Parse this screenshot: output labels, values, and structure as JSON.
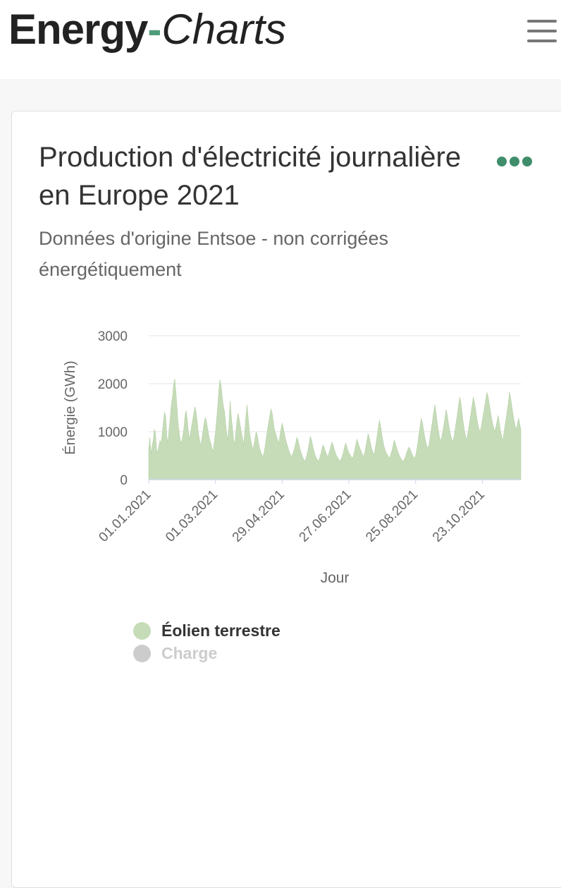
{
  "header": {
    "logo_part1": "Energy",
    "logo_part2": "-",
    "logo_part3": "Charts",
    "logo_color": "#222222",
    "logo_accent_color": "#4e9c7a",
    "menu_icon": "hamburger-menu-icon"
  },
  "card": {
    "title": "Production d'électricité journalière en Europe 2021",
    "subtitle": "Données d'origine Entsoe - non corrigées énergétiquement",
    "more_icon": "more-dots-icon",
    "more_color": "#3f8d6b"
  },
  "chart_data": {
    "type": "area",
    "title": "Production d'électricité journalière en Europe 2021",
    "xlabel": "Jour",
    "ylabel": "Énergie (GWh)",
    "ylim": [
      0,
      3000
    ],
    "y_ticks": [
      "0",
      "1000",
      "2000",
      "3000"
    ],
    "x_start": "2021-01-01",
    "x_tick_labels": [
      "01.01.2021",
      "01.03.2021",
      "29.04.2021",
      "27.06.2021",
      "25.08.2021",
      "23.10.2021"
    ],
    "x_tick_day_index": [
      0,
      59,
      118,
      177,
      236,
      295
    ],
    "grid": true,
    "legend_position": "bottom-left",
    "series": [
      {
        "name": "Éolien terrestre",
        "color": "#c6dcb9",
        "visible": true,
        "values": [
          620,
          880,
          540,
          700,
          820,
          1050,
          960,
          610,
          580,
          700,
          820,
          740,
          980,
          1200,
          1410,
          1320,
          890,
          760,
          1050,
          1280,
          1560,
          1720,
          1980,
          2100,
          1840,
          1520,
          1180,
          960,
          820,
          760,
          900,
          1050,
          1310,
          1440,
          1280,
          1020,
          840,
          980,
          1120,
          1260,
          1400,
          1520,
          1390,
          1180,
          960,
          820,
          700,
          860,
          1010,
          1180,
          1300,
          1220,
          1080,
          940,
          820,
          760,
          640,
          600,
          780,
          980,
          1240,
          1520,
          1860,
          2080,
          1960,
          1720,
          1540,
          1420,
          1180,
          960,
          820,
          1180,
          1640,
          1320,
          1080,
          840,
          720,
          980,
          1220,
          1380,
          1260,
          1120,
          980,
          860,
          720,
          1020,
          1340,
          1560,
          1280,
          1020,
          860,
          740,
          620,
          720,
          860,
          1000,
          920,
          780,
          660,
          580,
          520,
          480,
          560,
          700,
          880,
          1040,
          1180,
          1320,
          1480,
          1400,
          1240,
          1060,
          980,
          900,
          820,
          760,
          900,
          1060,
          1180,
          1080,
          960,
          840,
          760,
          680,
          600,
          540,
          480,
          520,
          580,
          660,
          760,
          880,
          820,
          720,
          620,
          540,
          480,
          420,
          380,
          440,
          520,
          640,
          780,
          900,
          820,
          700,
          600,
          520,
          460,
          420,
          380,
          440,
          520,
          620,
          720,
          680,
          600,
          540,
          480,
          520,
          600,
          700,
          780,
          720,
          640,
          560,
          500,
          460,
          420,
          380,
          420,
          480,
          560,
          660,
          760,
          700,
          620,
          560,
          520,
          480,
          440,
          500,
          600,
          720,
          840,
          780,
          700,
          640,
          580,
          520,
          480,
          560,
          680,
          820,
          960,
          880,
          760,
          660,
          580,
          520,
          600,
          760,
          920,
          1080,
          1240,
          1120,
          960,
          820,
          700,
          620,
          560,
          520,
          480,
          440,
          520,
          600,
          700,
          820,
          760,
          680,
          600,
          540,
          480,
          440,
          400,
          380,
          420,
          480,
          560,
          620,
          680,
          640,
          580,
          520,
          480,
          440,
          500,
          620,
          780,
          960,
          1120,
          1280,
          1180,
          1040,
          900,
          780,
          700,
          640,
          760,
          920,
          1080,
          1240,
          1420,
          1560,
          1400,
          1200,
          1040,
          900,
          800,
          880,
          1000,
          1140,
          1300,
          1460,
          1340,
          1180,
          1040,
          920,
          840,
          780,
          900,
          1060,
          1220,
          1380,
          1560,
          1720,
          1600,
          1400,
          1200,
          1040,
          920,
          820,
          940,
          1080,
          1240,
          1400,
          1560,
          1720,
          1620,
          1460,
          1300,
          1160,
          1060,
          980,
          1100,
          1240,
          1380,
          1520,
          1680,
          1820,
          1740,
          1600,
          1440,
          1300,
          1180,
          1080,
          1000,
          1100,
          1220,
          1340,
          1180,
          1020,
          900,
          800,
          960,
          1120,
          1280,
          1440,
          1600,
          1820,
          1700,
          1540,
          1380,
          1240,
          1120,
          1040,
          1160,
          1280,
          1160,
          1040
        ]
      },
      {
        "name": "Charge",
        "color": "#cccccc",
        "visible": false
      }
    ]
  }
}
